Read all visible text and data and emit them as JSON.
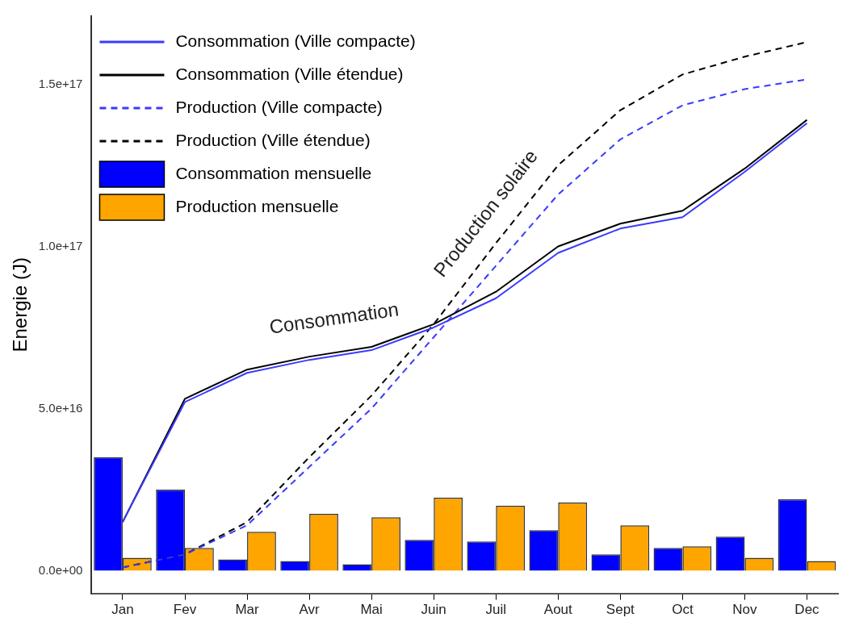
{
  "chart_data": {
    "type": "bar",
    "ylabel": "Energie (J)",
    "categories": [
      "Jan",
      "Fev",
      "Mar",
      "Avr",
      "Mai",
      "Juin",
      "Juil",
      "Aout",
      "Sept",
      "Oct",
      "Nov",
      "Dec"
    ],
    "ylim": [
      -7000000000000000.0,
      1.71e+17
    ],
    "yticks": [
      {
        "value": 0,
        "label": "0.0e+00"
      },
      {
        "value": 5e+16,
        "label": "5.0e+16"
      },
      {
        "value": 1e+17,
        "label": "1.0e+17"
      },
      {
        "value": 1.5e+17,
        "label": "1.5e+17"
      }
    ],
    "legend": "top left",
    "grid": false,
    "annotations": [
      "Consommation",
      "Production solaire"
    ],
    "series": [
      {
        "name": "Consommation (Ville compacte)",
        "type": "line",
        "line_style": "solid",
        "color": "#3a3aff",
        "values": [
          1.5e+16,
          5.2e+16,
          6.1e+16,
          6.5e+16,
          6.8e+16,
          7.5e+16,
          8.4e+16,
          9.8e+16,
          1.055e+17,
          1.09e+17,
          1.23e+17,
          1.38e+17
        ]
      },
      {
        "name": "Consommation (Ville étendue)",
        "type": "line",
        "line_style": "solid",
        "color": "#000000",
        "values": [
          1.5e+16,
          5.3e+16,
          6.2e+16,
          6.6e+16,
          6.9e+16,
          7.6e+16,
          8.6e+16,
          1e+17,
          1.07e+17,
          1.11e+17,
          1.24e+17,
          1.39e+17
        ]
      },
      {
        "name": "Production (Ville compacte)",
        "type": "line",
        "line_style": "dashed",
        "color": "#3a3aff",
        "values": [
          1000000000000000.0,
          5000000000000000.0,
          1.4e+16,
          3.2e+16,
          5e+16,
          7.2e+16,
          9.4e+16,
          1.16e+17,
          1.33e+17,
          1.435e+17,
          1.485e+17,
          1.515e+17
        ]
      },
      {
        "name": "Production (Ville étendue)",
        "type": "line",
        "line_style": "dashed",
        "color": "#000000",
        "values": [
          1000000000000000.0,
          5000000000000000.0,
          1.5e+16,
          3.5e+16,
          5.4e+16,
          7.6e+16,
          1.01e+17,
          1.25e+17,
          1.42e+17,
          1.53e+17,
          1.585e+17,
          1.63e+17
        ]
      },
      {
        "name": "Consommation mensuelle",
        "color": "#0000ff",
        "values": [
          3.5e+16,
          2.5e+16,
          3500000000000000.0,
          3000000000000000.0,
          2000000000000000.0,
          9500000000000000.0,
          9000000000000000.0,
          1.25e+16,
          5000000000000000.0,
          7000000000000000.0,
          1.05e+16,
          2.2e+16
        ]
      },
      {
        "name": "Production mensuelle",
        "color": "#ffa500",
        "values": [
          4000000000000000.0,
          7000000000000000.0,
          1.2e+16,
          1.75e+16,
          1.65e+16,
          2.25e+16,
          2e+16,
          2.1e+16,
          1.4e+16,
          7500000000000000.0,
          4000000000000000.0,
          3000000000000000.0
        ]
      }
    ]
  }
}
